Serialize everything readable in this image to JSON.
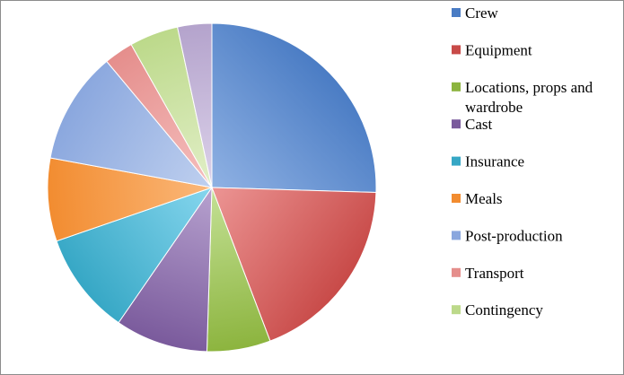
{
  "chart_data": {
    "type": "pie",
    "title": "",
    "legend_position": "right",
    "slices": [
      {
        "label": "Crew",
        "value": 26.5,
        "color": "#4a7cc4",
        "color_light": "#8fb1e3"
      },
      {
        "label": "Equipment",
        "value": 19.5,
        "color": "#c84a48",
        "color_light": "#ec9594"
      },
      {
        "label": "Locations, props and wardrobe",
        "value": 6.5,
        "color": "#8cb43e",
        "color_light": "#c4e196"
      },
      {
        "label": "Cast",
        "value": 9.5,
        "color": "#7a5a9c",
        "color_light": "#b7a2cf"
      },
      {
        "label": "Insurance",
        "value": 10.5,
        "color": "#36a7c5",
        "color_light": "#86d6ee"
      },
      {
        "label": "Meals",
        "value": 8.5,
        "color": "#f28c30",
        "color_light": "#fbb87a"
      },
      {
        "label": "Post-production",
        "value": 11.5,
        "color": "#8aa7de",
        "color_light": "#bfd0ef"
      },
      {
        "label": "Transport",
        "value": 3.0,
        "color": "#e58e8c",
        "color_light": "#f5bfbe"
      },
      {
        "label": "Contingency",
        "value": 5.0,
        "color": "#bcd98a",
        "color_light": "#e2efc8"
      },
      {
        "label": "",
        "value": 3.5,
        "color": "#b4a3cc",
        "color_light": "#dcd2ea"
      }
    ]
  }
}
